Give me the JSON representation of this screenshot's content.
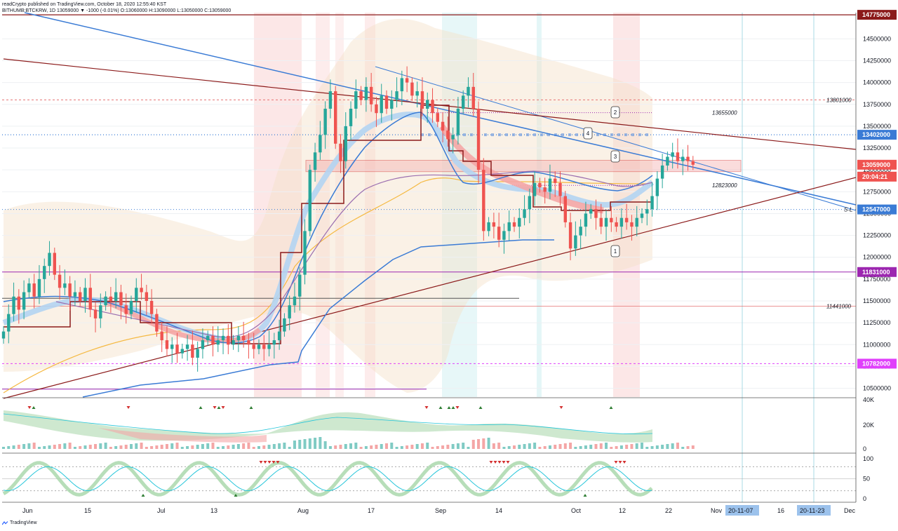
{
  "header": {
    "publish_line": "readCrypto published on TradingView.com, October 18, 2020 12:55:40 KST",
    "symbol": "BITHUMB:BTCKRW, 1D 13059000 ▼ -1000 (-0.01%) O:13060000 H:13090000 L:13050000 C:13059000"
  },
  "footer": {
    "brand": "TradingView"
  },
  "colors": {
    "up": "#26a69a",
    "down": "#ef5350",
    "trend_dark": "#8b1a1a",
    "trend_blue": "#3a7bd5",
    "purple": "#9c27b0",
    "magenta": "#e040fb",
    "cloud": "#f5e1c8",
    "ma_orange": "#f5b942"
  },
  "chart_data": {
    "type": "candlestick",
    "symbol": "BITHUMB:BTCKRW",
    "interval": "1D",
    "price_axis": {
      "range": [
        10400000,
        14800000
      ],
      "ticks": [
        "14500000",
        "14250000",
        "14000000",
        "13750000",
        "13500000",
        "13250000",
        "13000000",
        "12750000",
        "12500000",
        "12250000",
        "12000000",
        "11750000",
        "11500000",
        "11250000",
        "11000000",
        "10750000",
        "10500000"
      ]
    },
    "time_axis": {
      "labels": [
        "Jun",
        "15",
        "Jul",
        "13",
        "Aug",
        "17",
        "Sep",
        "14",
        "Oct",
        "12",
        "22",
        "Nov",
        "16",
        "Dec"
      ],
      "highlighted": [
        "20-11-07",
        "20-11-23"
      ]
    },
    "price_tags": [
      {
        "value": "14775000",
        "bg": "#8b1a1a",
        "fg": "#ffffff"
      },
      {
        "value": "13402000",
        "bg": "#3a7bd5",
        "fg": "#ffffff"
      },
      {
        "value": "13059000",
        "bg": "#ef5350",
        "fg": "#ffffff"
      },
      {
        "value": "20:04:21",
        "bg": "#ef5350",
        "fg": "#ffffff"
      },
      {
        "value": "12547000",
        "bg": "#3a7bd5",
        "fg": "#ffffff"
      },
      {
        "value": "11831000",
        "bg": "#9c27b0",
        "fg": "#ffffff"
      },
      {
        "value": "10782000",
        "bg": "#e040fb",
        "fg": "#ffffff"
      }
    ],
    "level_labels": [
      {
        "value": "13801000",
        "price": 13801000
      },
      {
        "value": "13655000",
        "price": 13655000
      },
      {
        "value": "12823000",
        "price": 12823000
      },
      {
        "value": "11441000",
        "price": 11441000
      }
    ],
    "annotations": [
      "1",
      "2",
      "3",
      "4",
      "S-L"
    ],
    "volume_axis": [
      "40K",
      "20K",
      "0"
    ],
    "oscillator_axis": [
      "100",
      "50",
      "0"
    ],
    "close": [
      11150000,
      11350000,
      11550000,
      11400000,
      11600000,
      11700000,
      11550000,
      11750000,
      11900000,
      12050000,
      11800000,
      11650000,
      11700000,
      11550000,
      11600000,
      11500000,
      11650000,
      11400000,
      11300000,
      11450000,
      11550000,
      11500000,
      11600000,
      11450000,
      11350000,
      11500000,
      11650000,
      11600000,
      11500000,
      11350000,
      11150000,
      11050000,
      10950000,
      11000000,
      10900000,
      10950000,
      11000000,
      10850000,
      10950000,
      11050000,
      11100000,
      11000000,
      11050000,
      11100000,
      11000000,
      11050000,
      11100000,
      11050000,
      11000000,
      10950000,
      11000000,
      10950000,
      11000000,
      11050000,
      11150000,
      11300000,
      11450000,
      11550000,
      11800000,
      12300000,
      13000000,
      13200000,
      13400000,
      13700000,
      13900000,
      13300000,
      13100000,
      13500000,
      13700000,
      13900000,
      13800000,
      13950000,
      13750000,
      13650000,
      13850000,
      13700000,
      13800000,
      13900000,
      14050000,
      14000000,
      13850000,
      13900000,
      13700000,
      13800000,
      13650000,
      13550000,
      13450000,
      13350000,
      13400000,
      13700000,
      13850000,
      13950000,
      13700000,
      13000000,
      12300000,
      12400000,
      12350000,
      12200000,
      12300000,
      12400000,
      12350000,
      12450000,
      12550000,
      12700000,
      12850000,
      12800000,
      12750000,
      12900000,
      12850000,
      12700000,
      12400000,
      12100000,
      12250000,
      12350000,
      12500000,
      12550000,
      12450000,
      12350000,
      12450000,
      12400000,
      12350000,
      12450000,
      12400000,
      12350000,
      12450000,
      12500000,
      12550000,
      12700000,
      12900000,
      13050000,
      13150000,
      13200000,
      13100000,
      13150000,
      13100000,
      13059000
    ]
  }
}
